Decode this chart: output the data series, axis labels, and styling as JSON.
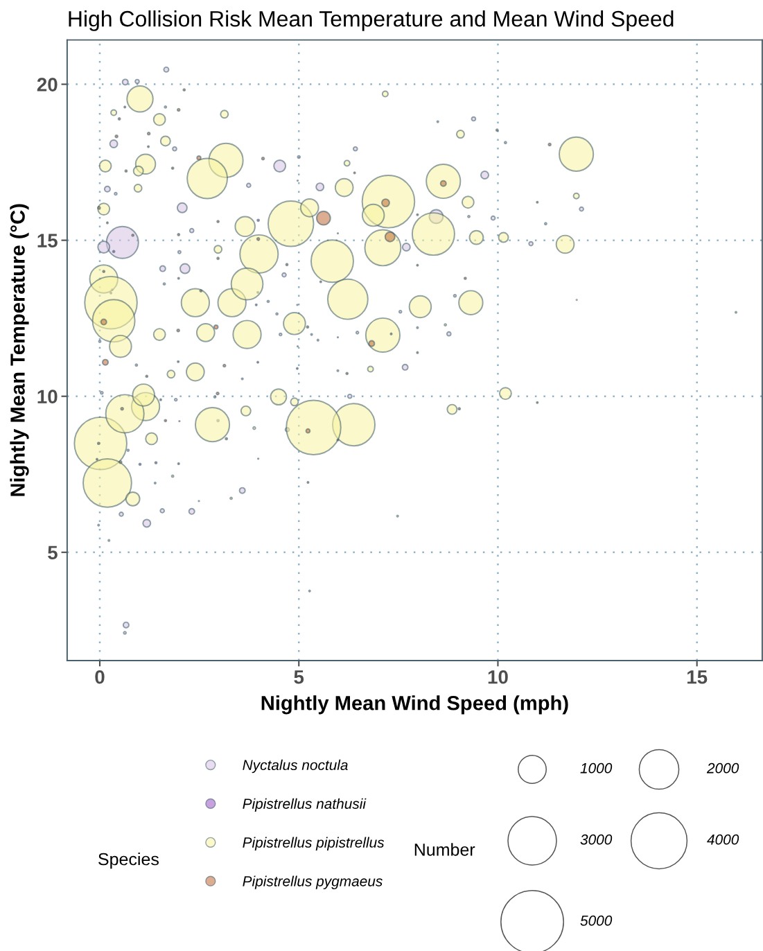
{
  "chart_data": {
    "type": "bubble",
    "title": "High Collision Risk Mean Temperature and Mean Wind Speed",
    "xlabel": "Nightly Mean Wind Speed (mph)",
    "ylabel": "Nightly Mean Temperature (°C)",
    "xlim": [
      -0.82,
      16.64
    ],
    "ylim": [
      1.53,
      21.42
    ],
    "xticks": [
      0,
      5,
      10,
      15
    ],
    "yticks": [
      5,
      10,
      15,
      20
    ],
    "grid": true,
    "legend": "bottom",
    "legend_title": "Species",
    "annotations": [
      "Number"
    ],
    "size_legend": [
      1000,
      2000,
      3000,
      4000,
      5000
    ],
    "marker": "circle",
    "series": [
      {
        "name": "Nyctalus noctula",
        "color": "#d5c3e3",
        "x": [
          1.67,
          0.64,
          0.94,
          1.65,
          0.35,
          1.88,
          4.52,
          5.0,
          3.74,
          0.19,
          0.4,
          2.07,
          2.31,
          0.57,
          0.1,
          2.0,
          2.14,
          1.58,
          4.63,
          10.83,
          11.2,
          12.1,
          10.19,
          9.39,
          8.49,
          9.67,
          9.88,
          9.27,
          6.42,
          5.53,
          7.7,
          8.45,
          8.92,
          7.55,
          7.98,
          8.77,
          7.67,
          5.98,
          6.47,
          6.28,
          5.48,
          5.27,
          0.66,
          0.63,
          3.58,
          2.31,
          1.57,
          1.18,
          -0.03,
          1.39,
          0.54,
          0.05,
          0.0,
          1.62,
          4.23,
          4.45,
          4.54,
          5.32,
          3.58,
          0.92,
          1.91,
          2.97,
          4.71,
          0.71,
          2.89
        ],
        "values": [
          20.47,
          20.07,
          20.09,
          19.27,
          18.09,
          17.93,
          17.38,
          17.67,
          16.76,
          16.64,
          16.49,
          16.04,
          15.31,
          14.93,
          14.78,
          14.62,
          14.09,
          14.09,
          13.89,
          14.89,
          15.53,
          16.0,
          18.13,
          18.89,
          18.8,
          17.09,
          15.71,
          15.76,
          17.93,
          16.71,
          14.78,
          15.76,
          13.22,
          12.71,
          12.2,
          12.0,
          10.93,
          10.82,
          12.04,
          10.0,
          11.8,
          3.76,
          2.67,
          2.42,
          6.98,
          6.31,
          6.33,
          5.93,
          5.87,
          7.22,
          6.22,
          10.11,
          11.76,
          13.6,
          13.04,
          12.64,
          11.98,
          11.98,
          10.56,
          11.0,
          9.89,
          9.22,
          8.93,
          8.27,
          9.98
        ],
        "sizes": [
          30,
          40,
          20,
          5,
          74,
          20,
          175,
          8,
          20,
          40,
          8,
          120,
          20,
          1300,
          175,
          10,
          120,
          40,
          20,
          20,
          5,
          20,
          5,
          20,
          3,
          74,
          20,
          5,
          20,
          74,
          74,
          240,
          8,
          8,
          3,
          20,
          40,
          3,
          8,
          20,
          3,
          3,
          40,
          8,
          40,
          40,
          20,
          74,
          3,
          3,
          20,
          8,
          5,
          5,
          5,
          5,
          8,
          3,
          3,
          5,
          8,
          5,
          20,
          5,
          5
        ]
      },
      {
        "name": "Pipistrellus nathusii",
        "color": "#9a55c4",
        "x": [
          3.98,
          0.35,
          0.31,
          0.28,
          3.97,
          3.93,
          4.96,
          1.97,
          3.97,
          4.96,
          2.0,
          1.01,
          1.41,
          3.98,
          2.49,
          5.98
        ],
        "values": [
          15.64,
          14.64,
          13.42,
          13.31,
          13.33,
          12.93,
          12.93,
          11.11,
          11.09,
          10.89,
          9.2,
          7.82,
          7.87,
          8.0,
          6.64,
          11.89
        ],
        "sizes": [
          5,
          5,
          3,
          3,
          3,
          3,
          1,
          3,
          3,
          3,
          1,
          5,
          5,
          1,
          1,
          1
        ]
      },
      {
        "name": "Pipistrellus pipistrellus",
        "color": "#f8f2a0",
        "x": [
          1.01,
          1.5,
          0.35,
          1.65,
          3.13,
          3.17,
          2.7,
          1.15,
          0.97,
          0.14,
          0.96,
          0.1,
          4.8,
          5.27,
          3.65,
          4.0,
          2.97,
          0.1,
          7.17,
          9.06,
          11.97,
          6.21,
          6.14,
          7.25,
          6.87,
          8.63,
          9.25,
          11.97,
          8.38,
          7.11,
          9.46,
          10.14,
          11.69,
          5.84,
          6.23,
          8.05,
          9.32,
          11.98,
          7.11,
          8.68,
          10.19,
          8.85,
          7.48,
          15.98,
          6.38,
          5.37,
          6.8,
          0.02,
          0.19,
          0.28,
          0.35,
          1.15,
          0.63,
          0.83,
          0.23,
          1.83,
          1.3,
          2.4,
          3.32,
          3.7,
          2.4,
          1.1,
          2.83,
          3.7,
          4.89,
          4.49,
          3.88,
          3.67,
          1.79,
          4.89,
          3.3,
          2.66,
          1.5,
          0.52
        ],
        "values": [
          19.53,
          18.87,
          19.09,
          18.18,
          19.04,
          17.56,
          16.98,
          17.44,
          17.22,
          17.38,
          16.67,
          16.0,
          15.53,
          16.04,
          15.44,
          14.56,
          14.71,
          13.76,
          19.69,
          18.4,
          17.76,
          17.47,
          16.69,
          16.24,
          15.8,
          16.89,
          16.22,
          16.42,
          15.2,
          14.76,
          15.09,
          15.09,
          14.87,
          14.33,
          13.11,
          12.87,
          13.0,
          13.09,
          11.96,
          12.29,
          10.09,
          9.58,
          6.16,
          12.69,
          9.09,
          9.0,
          10.87,
          8.49,
          7.22,
          13.0,
          12.42,
          9.67,
          9.44,
          6.71,
          5.38,
          7.44,
          8.64,
          13.0,
          13.0,
          13.6,
          10.78,
          10.04,
          9.09,
          11.98,
          9.82,
          9.98,
          8.98,
          9.53,
          10.71,
          12.33,
          6.73,
          12.04,
          11.98,
          11.6
        ],
        "sizes": [
          860,
          175,
          40,
          120,
          74,
          1480,
          2050,
          500,
          120,
          175,
          74,
          175,
          2630,
          405,
          500,
          1860,
          74,
          1000,
          40,
          74,
          1480,
          40,
          405,
          3500,
          610,
          1480,
          175,
          40,
          2280,
          1650,
          240,
          120,
          405,
          2280,
          2050,
          610,
          730,
          1,
          1480,
          5,
          175,
          120,
          3,
          3,
          2280,
          3780,
          40,
          3500,
          2980,
          3500,
          2280,
          1000,
          1860,
          240,
          3,
          5,
          175,
          1000,
          1000,
          1280,
          405,
          610,
          1480,
          1000,
          74,
          320,
          8,
          120,
          74,
          610,
          5,
          405,
          175,
          610
        ]
      },
      {
        "name": "Pipistrellus pygmaeus",
        "color": "#c06a35",
        "x": [
          2.12,
          1.98,
          0.63,
          0.49,
          1.23,
          0.42,
          1.22,
          2.49,
          1.83,
          4.1,
          4.97,
          0.66,
          -0.02,
          0.19,
          2.97,
          1.98,
          3.98,
          0.83,
          0.1,
          2.97,
          4.7,
          1.98,
          7.98,
          7.18,
          5.62,
          8.63,
          6.4,
          9.98,
          11.3,
          10.99,
          5.98,
          7.29,
          7.98,
          9.18,
          5.55,
          6.83,
          7.32,
          7.98,
          6.21,
          9.03,
          10.99,
          5.98,
          5.23,
          5.23,
          1.97,
          2.92,
          0.1,
          0.14,
          1.18,
          1.65,
          0.56,
          -0.03,
          -0.07,
          0.52,
          1.98,
          3.18,
          3.13,
          2.96,
          1.53,
          5.22,
          4.97,
          2.54
        ],
        "values": [
          19.82,
          19.18,
          19.27,
          18.89,
          18.42,
          18.33,
          18.0,
          17.64,
          17.31,
          17.62,
          16.91,
          17.22,
          16.04,
          15.56,
          15.6,
          15.18,
          15.04,
          15.16,
          14.0,
          14.42,
          14.22,
          13.78,
          15.82,
          16.2,
          15.71,
          16.82,
          17.16,
          18.53,
          18.07,
          16.22,
          15.22,
          15.11,
          14.2,
          13.78,
          13.67,
          11.69,
          12.0,
          11.4,
          10.73,
          9.6,
          9.8,
          8.6,
          8.89,
          7.24,
          12.11,
          12.22,
          12.38,
          11.09,
          10.64,
          9.22,
          9.6,
          8.49,
          7.98,
          7.89,
          7.84,
          8.64,
          10.98,
          10.09,
          9.89,
          12.22,
          11.6,
          13.38
        ],
        "sizes": [
          5,
          8,
          3,
          5,
          8,
          8,
          3,
          20,
          5,
          8,
          1,
          5,
          8,
          3,
          5,
          5,
          8,
          5,
          5,
          5,
          5,
          3,
          3,
          74,
          240,
          40,
          3,
          5,
          8,
          3,
          1,
          120,
          3,
          5,
          3,
          40,
          3,
          3,
          5,
          5,
          3,
          3,
          20,
          3,
          8,
          20,
          40,
          40,
          5,
          5,
          8,
          5,
          3,
          8,
          3,
          5,
          8,
          8,
          3,
          5,
          1,
          5
        ]
      }
    ]
  }
}
